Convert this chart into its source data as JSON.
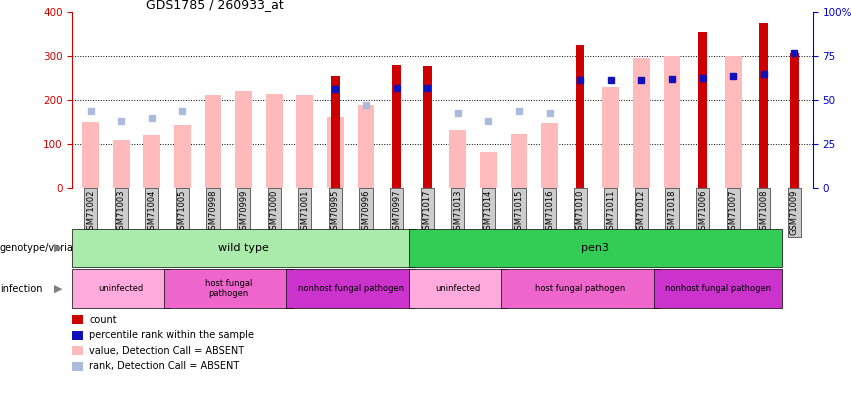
{
  "title": "GDS1785 / 260933_at",
  "samples": [
    "GSM71002",
    "GSM71003",
    "GSM71004",
    "GSM71005",
    "GSM70998",
    "GSM70999",
    "GSM71000",
    "GSM71001",
    "GSM70995",
    "GSM70996",
    "GSM70997",
    "GSM71017",
    "GSM71013",
    "GSM71014",
    "GSM71015",
    "GSM71016",
    "GSM71010",
    "GSM71011",
    "GSM71012",
    "GSM71018",
    "GSM71006",
    "GSM71007",
    "GSM71008",
    "GSM71009"
  ],
  "count_values": [
    null,
    null,
    null,
    null,
    null,
    null,
    null,
    null,
    255,
    null,
    280,
    277,
    null,
    null,
    null,
    null,
    325,
    null,
    null,
    null,
    355,
    null,
    375,
    308
  ],
  "pink_values": [
    150,
    110,
    120,
    143,
    211,
    220,
    215,
    212,
    163,
    190,
    null,
    null,
    133,
    83,
    123,
    148,
    null,
    230,
    295,
    300,
    null,
    300,
    null,
    null
  ],
  "blue_squares": [
    null,
    null,
    null,
    null,
    null,
    null,
    null,
    null,
    225,
    null,
    227,
    228,
    null,
    null,
    null,
    null,
    247,
    245,
    247,
    248,
    250,
    255,
    260,
    307
  ],
  "lightblue_squares": [
    175,
    152,
    160,
    175,
    null,
    null,
    null,
    null,
    null,
    190,
    null,
    null,
    172,
    152,
    175,
    172,
    null,
    null,
    null,
    null,
    null,
    null,
    null,
    null
  ],
  "ylim_left": [
    0,
    400
  ],
  "ylim_right": [
    0,
    100
  ],
  "yticks_left": [
    0,
    100,
    200,
    300,
    400
  ],
  "yticks_right": [
    0,
    25,
    50,
    75,
    100
  ],
  "yticklabels_right": [
    "0",
    "25",
    "50",
    "75",
    "100%"
  ],
  "genotype_groups": [
    {
      "label": "wild type",
      "start": 0,
      "end": 11,
      "color": "#aaeaaa"
    },
    {
      "label": "pen3",
      "start": 11,
      "end": 23,
      "color": "#33cc55"
    }
  ],
  "infection_groups": [
    {
      "label": "uninfected",
      "start": 0,
      "end": 3,
      "color": "#ffaadd"
    },
    {
      "label": "host fungal\npathogen",
      "start": 3,
      "end": 7,
      "color": "#ee66cc"
    },
    {
      "label": "nonhost fungal pathogen",
      "start": 7,
      "end": 11,
      "color": "#cc33cc"
    },
    {
      "label": "uninfected",
      "start": 11,
      "end": 14,
      "color": "#ffaadd"
    },
    {
      "label": "host fungal pathogen",
      "start": 14,
      "end": 19,
      "color": "#ee66cc"
    },
    {
      "label": "nonhost fungal pathogen",
      "start": 19,
      "end": 23,
      "color": "#cc33cc"
    }
  ],
  "count_color": "#cc0000",
  "pink_color": "#ffbbbb",
  "blue_color": "#1111bb",
  "lightblue_color": "#aabbdd",
  "bg_color": "#ffffff",
  "left_axis_color": "#cc0000",
  "right_axis_color": "#0000cc",
  "xtick_bg_color": "#cccccc"
}
